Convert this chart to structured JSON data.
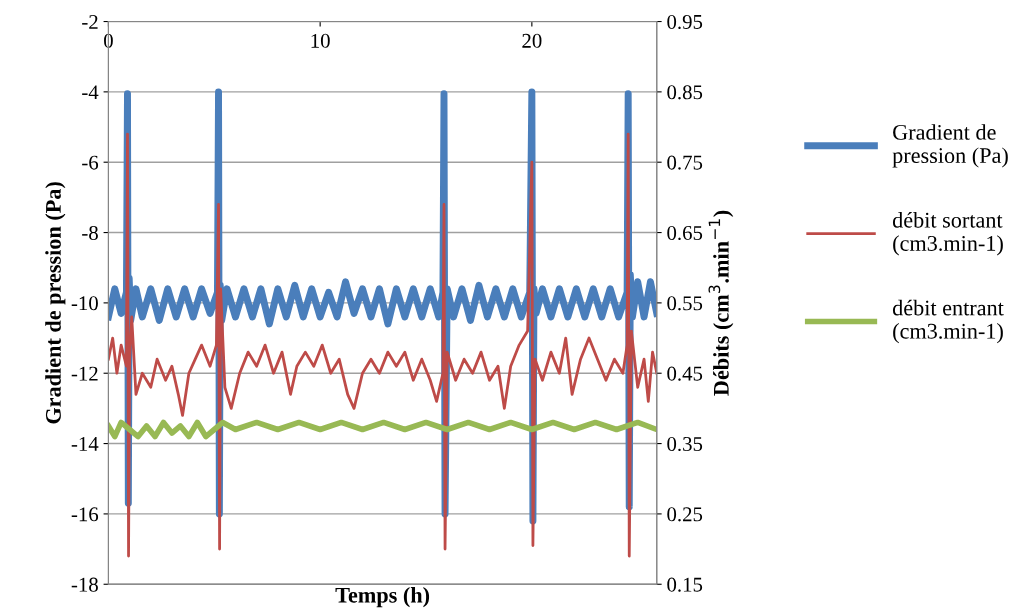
{
  "chart_data": {
    "type": "line",
    "xlabel": "Temps (h)",
    "ylabel": "Gradient de pression (Pa)",
    "y2label": "Débits (cm$^{3}$.min$^{−1}$)",
    "xlim": [
      0,
      25.9
    ],
    "xticks": [
      0,
      10,
      20
    ],
    "ylim": [
      -18,
      -2
    ],
    "yticks": [
      -18,
      -16,
      -14,
      -12,
      -10,
      -8,
      -6,
      -4,
      -2
    ],
    "y2lim": [
      0.15,
      0.95
    ],
    "y2ticks": [
      0.15,
      0.25,
      0.35,
      0.45,
      0.55,
      0.65,
      0.75,
      0.85,
      0.95
    ],
    "grid": "y",
    "legend": "right",
    "marker": "none",
    "line_style": "solid",
    "series": [
      {
        "name": "Gradient de\npression (Pa)",
        "color": "#4a7ebb",
        "axis": "y",
        "x": [
          0,
          0.3,
          0.6,
          0.85,
          0.9,
          0.94,
          0.98,
          1.05,
          1.3,
          1.6,
          2.0,
          2.4,
          2.8,
          3.2,
          3.6,
          4.0,
          4.4,
          4.8,
          5.15,
          5.2,
          5.24,
          5.28,
          5.35,
          5.6,
          6.0,
          6.4,
          6.8,
          7.2,
          7.6,
          8.0,
          8.4,
          8.8,
          9.2,
          9.6,
          10.0,
          10.4,
          10.8,
          11.2,
          11.6,
          12.0,
          12.4,
          12.8,
          13.2,
          13.6,
          14.0,
          14.4,
          14.8,
          15.2,
          15.6,
          15.8,
          15.85,
          15.9,
          16.0,
          16.3,
          16.7,
          17.1,
          17.5,
          17.9,
          18.3,
          18.7,
          19.1,
          19.5,
          19.9,
          20.0,
          20.05,
          20.1,
          20.2,
          20.5,
          20.9,
          21.3,
          21.7,
          22.1,
          22.5,
          22.9,
          23.3,
          23.7,
          24.1,
          24.5,
          24.55,
          24.6,
          24.65,
          24.75,
          25.0,
          25.3,
          25.6,
          25.9
        ],
        "values": [
          -10.4,
          -9.6,
          -10.3,
          -9.7,
          -4.05,
          -15.7,
          -9.3,
          -10.5,
          -9.6,
          -10.4,
          -9.6,
          -10.5,
          -9.6,
          -10.4,
          -9.6,
          -10.4,
          -9.6,
          -10.3,
          -9.7,
          -4.0,
          -16.0,
          -9.5,
          -10.5,
          -9.6,
          -10.4,
          -9.6,
          -10.4,
          -9.6,
          -10.6,
          -9.6,
          -10.4,
          -9.5,
          -10.4,
          -9.6,
          -10.4,
          -9.7,
          -10.4,
          -9.4,
          -10.3,
          -9.6,
          -10.4,
          -9.6,
          -10.6,
          -9.6,
          -10.4,
          -9.6,
          -10.4,
          -9.6,
          -10.4,
          -9.7,
          -4.05,
          -16.0,
          -9.6,
          -10.4,
          -9.6,
          -10.5,
          -9.5,
          -10.4,
          -9.6,
          -10.4,
          -9.6,
          -10.4,
          -9.7,
          -4.0,
          -16.2,
          -9.6,
          -10.3,
          -9.6,
          -10.4,
          -9.6,
          -10.4,
          -9.6,
          -10.4,
          -9.6,
          -10.4,
          -9.6,
          -10.4,
          -9.7,
          -4.05,
          -15.8,
          -9.2,
          -10.4,
          -9.4,
          -10.4,
          -9.4,
          -10.3
        ]
      },
      {
        "name": "débit sortant\n(cm3.min-1)",
        "color": "#be4b48",
        "axis": "y2",
        "x": [
          0,
          0.2,
          0.4,
          0.6,
          0.85,
          0.9,
          0.95,
          1.0,
          1.1,
          1.3,
          1.6,
          2.0,
          2.3,
          2.7,
          3.0,
          3.3,
          3.5,
          3.8,
          4.1,
          4.4,
          4.8,
          5.1,
          5.2,
          5.25,
          5.3,
          5.5,
          5.8,
          6.2,
          6.6,
          7.0,
          7.4,
          7.8,
          8.2,
          8.6,
          8.9,
          9.3,
          9.7,
          10.1,
          10.5,
          10.9,
          11.3,
          11.6,
          12.0,
          12.4,
          12.8,
          13.2,
          13.6,
          14.0,
          14.4,
          14.8,
          15.2,
          15.5,
          15.8,
          15.85,
          15.9,
          16.0,
          16.4,
          16.8,
          17.2,
          17.6,
          18.0,
          18.4,
          18.7,
          19.0,
          19.4,
          19.8,
          20.0,
          20.05,
          20.15,
          20.5,
          20.9,
          21.3,
          21.6,
          21.9,
          22.3,
          22.7,
          23.1,
          23.5,
          23.9,
          24.3,
          24.5,
          24.55,
          24.6,
          24.7,
          25.0,
          25.3,
          25.5,
          25.7,
          25.9
        ],
        "values": [
          0.47,
          0.5,
          0.45,
          0.49,
          0.46,
          0.79,
          0.19,
          0.47,
          0.53,
          0.42,
          0.45,
          0.43,
          0.47,
          0.44,
          0.46,
          0.42,
          0.39,
          0.45,
          0.47,
          0.49,
          0.46,
          0.49,
          0.69,
          0.2,
          0.57,
          0.43,
          0.4,
          0.45,
          0.48,
          0.46,
          0.49,
          0.45,
          0.48,
          0.42,
          0.46,
          0.48,
          0.46,
          0.49,
          0.45,
          0.47,
          0.42,
          0.4,
          0.45,
          0.47,
          0.45,
          0.48,
          0.46,
          0.48,
          0.44,
          0.47,
          0.44,
          0.41,
          0.45,
          0.69,
          0.2,
          0.48,
          0.44,
          0.47,
          0.45,
          0.48,
          0.44,
          0.46,
          0.4,
          0.46,
          0.49,
          0.51,
          0.75,
          0.205,
          0.47,
          0.44,
          0.48,
          0.45,
          0.5,
          0.42,
          0.47,
          0.5,
          0.47,
          0.44,
          0.47,
          0.45,
          0.49,
          0.79,
          0.19,
          0.51,
          0.43,
          0.47,
          0.41,
          0.48,
          0.45
        ]
      },
      {
        "name": "débit entrant\n(cm3.min-1)",
        "color": "#98b954",
        "axis": "y2",
        "x": [
          0,
          0.3,
          0.6,
          1.0,
          1.4,
          1.8,
          2.2,
          2.6,
          3.0,
          3.4,
          3.8,
          4.2,
          4.6,
          5.0,
          5.4,
          6.0,
          7.0,
          8.0,
          9.0,
          10.0,
          11.0,
          12.0,
          13.0,
          14.0,
          15.0,
          16.0,
          17.0,
          18.0,
          19.0,
          20.0,
          21.0,
          22.0,
          23.0,
          24.0,
          25.0,
          25.9
        ],
        "values": [
          0.375,
          0.36,
          0.38,
          0.37,
          0.36,
          0.375,
          0.36,
          0.38,
          0.365,
          0.375,
          0.36,
          0.38,
          0.36,
          0.37,
          0.38,
          0.37,
          0.38,
          0.37,
          0.38,
          0.37,
          0.38,
          0.37,
          0.38,
          0.37,
          0.38,
          0.37,
          0.38,
          0.37,
          0.38,
          0.37,
          0.38,
          0.37,
          0.38,
          0.37,
          0.38,
          0.37
        ]
      }
    ]
  }
}
